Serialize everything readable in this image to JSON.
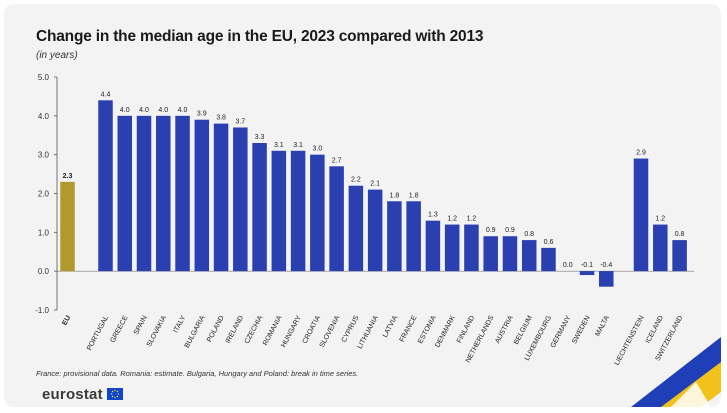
{
  "chart_data": {
    "type": "bar",
    "title": "Change in the median age in the EU, 2023 compared with 2013",
    "subtitle": "(in years)",
    "ylim": [
      -1.0,
      5.0
    ],
    "yticks": [
      "5.0",
      "4.0",
      "3.0",
      "2.0",
      "1.0",
      "0.0",
      "-1.0"
    ],
    "categories": [
      "EU",
      "PORTUGAL",
      "GREECE",
      "SPAIN",
      "SLOVAKIA",
      "ITALY",
      "BULGARIA",
      "POLAND",
      "IRELAND",
      "CZECHIA",
      "ROMANIA",
      "HUNGARY",
      "CROATIA",
      "SLOVENIA",
      "CYPRUS",
      "LITHUANIA",
      "LATVIA",
      "FRANCE",
      "ESTONIA",
      "DENMARK",
      "FINLAND",
      "NETHERLANDS",
      "AUSTRIA",
      "BELGIUM",
      "LUXEMBOURG",
      "GERMANY",
      "SWEDEN",
      "MALTA",
      "LIECHTENSTEIN",
      "ICELAND",
      "SWITZERLAND"
    ],
    "values": [
      2.3,
      4.4,
      4.0,
      4.0,
      4.0,
      4.0,
      3.9,
      3.8,
      3.7,
      3.3,
      3.1,
      3.1,
      3.0,
      2.7,
      2.2,
      2.1,
      1.8,
      1.8,
      1.3,
      1.2,
      1.2,
      0.9,
      0.9,
      0.8,
      0.6,
      0.0,
      -0.1,
      -0.4,
      2.9,
      1.2,
      0.8
    ],
    "value_labels": [
      "2.3",
      "4.4",
      "4.0",
      "4.0",
      "4.0",
      "4.0",
      "3.9",
      "3.8",
      "3.7",
      "3.3",
      "3.1",
      "3.1",
      "3.0",
      "2.7",
      "2.2",
      "2.1",
      "1.8",
      "1.8",
      "1.3",
      "1.2",
      "1.2",
      "0.9",
      "0.9",
      "0.8",
      "0.6",
      "0.0",
      "-0.1",
      "-0.4",
      "2.9",
      "1.2",
      "0.8"
    ],
    "groups": [
      "eu",
      "member",
      "member",
      "member",
      "member",
      "member",
      "member",
      "member",
      "member",
      "member",
      "member",
      "member",
      "member",
      "member",
      "member",
      "member",
      "member",
      "member",
      "member",
      "member",
      "member",
      "member",
      "member",
      "member",
      "member",
      "member",
      "member",
      "member",
      "efta",
      "efta",
      "efta"
    ],
    "colors": {
      "eu": "#b09a2e",
      "member": "#2a3fb0"
    },
    "footnote": "France: provisional data. Romania: estimate. Bulgaria, Hungary and Poland: break in time series."
  },
  "brand": {
    "name": "eurostat",
    "flag_color": "#0e47cb"
  }
}
